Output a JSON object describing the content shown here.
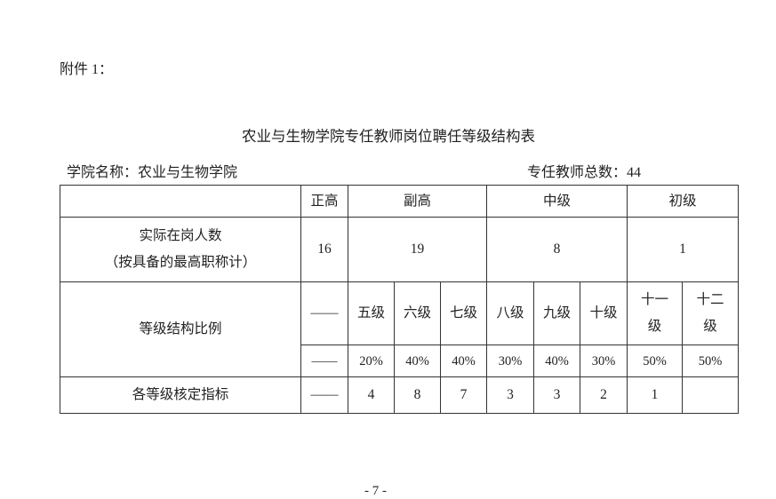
{
  "attachment_label": "附件 1：",
  "title": "农业与生物学院专任教师岗位聘任等级结构表",
  "college": {
    "label": "学院名称：",
    "value": "农业与生物学院"
  },
  "total": {
    "label": "专任教师总数：",
    "value": "44"
  },
  "table": {
    "headers": [
      "正高",
      "副高",
      "中级",
      "初级"
    ],
    "actual_row": {
      "label_line1": "实际在岗人数",
      "label_line2": "（按具备的最高职称计）",
      "values": [
        "16",
        "19",
        "8",
        "1"
      ]
    },
    "ratio_row": {
      "label": "等级结构比例",
      "levels": [
        "——",
        "五级",
        "六级",
        "七级",
        "八级",
        "九级",
        "十级",
        "十一",
        "级",
        "十二",
        "级"
      ],
      "percents": [
        "——",
        "20%",
        "40%",
        "40%",
        "30%",
        "40%",
        "30%",
        "50%",
        "50%"
      ]
    },
    "quota_row": {
      "label": "各等级核定指标",
      "values": [
        "——",
        "4",
        "8",
        "7",
        "3",
        "3",
        "2",
        "1",
        ""
      ]
    }
  },
  "page_number": "- 7 -"
}
